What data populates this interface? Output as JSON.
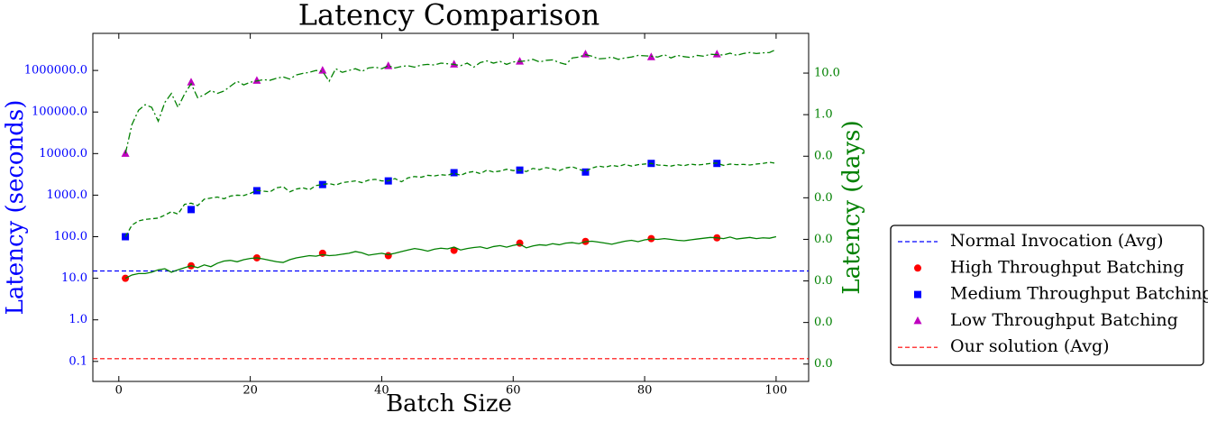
{
  "chart_data": {
    "type": "line",
    "title": "Latency Comparison",
    "xlabel": "Batch Size",
    "ylabel": "Latency (seconds)",
    "y2label": "Latency (days)",
    "xlim": [
      -3.95,
      104.95
    ],
    "xticks": [
      0,
      20,
      40,
      60,
      80,
      100
    ],
    "ylim": [
      0.033,
      7800000
    ],
    "yscale": "log",
    "yticks": [
      0.1,
      {
        "value": 1,
        "label": "1.0"
      },
      {
        "value": 10,
        "label": "10.0"
      },
      {
        "value": 100,
        "label": "100.0"
      },
      {
        "value": 1000,
        "label": "1000.0"
      },
      {
        "value": 10000,
        "label": "10000.0"
      },
      {
        "value": 100000,
        "label": "100000.0"
      },
      {
        "value": 1000000,
        "label": "1000000.0"
      }
    ],
    "y2lim": [
      3.82e-07,
      90.3
    ],
    "y2scale": "log",
    "y2ticks": [
      {
        "value": 1e-06,
        "label": "0.0"
      },
      {
        "value": 1e-05,
        "label": "0.0"
      },
      {
        "value": 0.0001,
        "label": "0.0"
      },
      {
        "value": 0.001,
        "label": "0.0"
      },
      {
        "value": 0.01,
        "label": "0.0"
      },
      {
        "value": 0.1,
        "label": "0.0"
      },
      {
        "value": 1,
        "label": "1.0"
      },
      {
        "value": 10,
        "label": "10.0"
      }
    ],
    "legend": "outside right",
    "series": [
      {
        "name": "Normal Invocation (Avg)",
        "kind": "hline",
        "style": "dashed",
        "color": "#0000ff",
        "value": 15
      },
      {
        "name": "High Throughput Batching",
        "kind": "marker",
        "marker": "circle",
        "color": "#ff0000",
        "x": [
          1,
          11,
          21,
          31,
          41,
          51,
          61,
          71,
          81,
          91
        ],
        "values": [
          10,
          20,
          31,
          40,
          35,
          47,
          70,
          77,
          90,
          94
        ]
      },
      {
        "name": "Medium Throughput Batching",
        "kind": "marker",
        "marker": "square",
        "color": "#0000ff",
        "x": [
          1,
          11,
          21,
          31,
          41,
          51,
          61,
          71,
          81,
          91
        ],
        "values": [
          100,
          450,
          1280,
          1800,
          2200,
          3470,
          4000,
          3600,
          5800,
          5800
        ]
      },
      {
        "name": "Low Throughput Batching",
        "kind": "marker",
        "marker": "triangle",
        "color": "#bf00bf",
        "x": [
          1,
          11,
          21,
          31,
          41,
          51,
          61,
          71,
          81,
          91
        ],
        "values": [
          10000,
          520000,
          570000,
          1000000,
          1280000,
          1400000,
          1650000,
          2450000,
          2100000,
          2450000
        ]
      },
      {
        "name": "Our solution (Avg)",
        "kind": "hline",
        "style": "dashed",
        "color": "#ff0000",
        "value": 0.116
      },
      {
        "kind": "line",
        "style": "solid",
        "color": "#008000",
        "x": [
          1,
          2,
          3,
          4,
          5,
          6,
          7,
          8,
          9,
          10,
          11,
          12,
          13,
          14,
          15,
          16,
          17,
          18,
          19,
          20,
          21,
          22,
          23,
          24,
          25,
          26,
          27,
          28,
          29,
          30,
          31,
          32,
          33,
          34,
          35,
          36,
          37,
          38,
          39,
          40,
          41,
          42,
          43,
          44,
          45,
          46,
          47,
          48,
          49,
          50,
          51,
          52,
          53,
          54,
          55,
          56,
          57,
          58,
          59,
          60,
          61,
          62,
          63,
          64,
          65,
          66,
          67,
          68,
          69,
          70,
          71,
          72,
          73,
          74,
          75,
          76,
          77,
          78,
          79,
          80,
          81,
          82,
          83,
          84,
          85,
          86,
          87,
          88,
          89,
          90,
          91,
          92,
          93,
          94,
          95,
          96,
          97,
          98,
          99,
          100
        ],
        "values": [
          10,
          12,
          13,
          13,
          14,
          16,
          17,
          14,
          16,
          18,
          20,
          18,
          21,
          19,
          23,
          26,
          27,
          25,
          28,
          30,
          31,
          29,
          27,
          25,
          24,
          28,
          31,
          33,
          35,
          34,
          37,
          35,
          36,
          38,
          40,
          44,
          41,
          36,
          38,
          40,
          37,
          40,
          44,
          48,
          52,
          49,
          45,
          50,
          53,
          51,
          56,
          48,
          52,
          55,
          57,
          52,
          58,
          61,
          56,
          62,
          66,
          54,
          60,
          64,
          62,
          68,
          64,
          70,
          72,
          68,
          76,
          78,
          74,
          70,
          66,
          72,
          78,
          82,
          76,
          84,
          88,
          86,
          90,
          86,
          82,
          80,
          84,
          88,
          92,
          96,
          94,
          90,
          98,
          88,
          92,
          96,
          90,
          94,
          92,
          100
        ]
      },
      {
        "kind": "line",
        "style": "dashed",
        "color": "#008000",
        "x": [
          1,
          2,
          3,
          4,
          5,
          6,
          7,
          8,
          9,
          10,
          11,
          12,
          13,
          14,
          15,
          16,
          17,
          18,
          19,
          20,
          21,
          22,
          23,
          24,
          25,
          26,
          27,
          28,
          29,
          30,
          31,
          32,
          33,
          34,
          35,
          36,
          37,
          38,
          39,
          40,
          41,
          42,
          43,
          44,
          45,
          46,
          47,
          48,
          49,
          50,
          51,
          52,
          53,
          54,
          55,
          56,
          57,
          58,
          59,
          60,
          61,
          62,
          63,
          64,
          65,
          66,
          67,
          68,
          69,
          70,
          71,
          72,
          73,
          74,
          75,
          76,
          77,
          78,
          79,
          80,
          81,
          82,
          83,
          84,
          85,
          86,
          87,
          88,
          89,
          90,
          91,
          92,
          93,
          94,
          95,
          96,
          97,
          98,
          99,
          100
        ],
        "values": [
          100,
          190,
          240,
          260,
          270,
          280,
          330,
          400,
          350,
          600,
          640,
          560,
          800,
          850,
          900,
          820,
          950,
          1000,
          980,
          1100,
          1300,
          1250,
          1200,
          1500,
          1600,
          1200,
          1400,
          1500,
          1350,
          1700,
          1800,
          1900,
          1750,
          2000,
          2100,
          2200,
          2000,
          2300,
          2400,
          2200,
          2200,
          2500,
          2100,
          2600,
          2800,
          2700,
          3000,
          2900,
          3100,
          3000,
          3400,
          3000,
          3500,
          3700,
          3300,
          4000,
          3600,
          3800,
          4200,
          3900,
          4000,
          3700,
          4400,
          4100,
          4600,
          4300,
          3900,
          4500,
          4800,
          4200,
          3700,
          4500,
          5000,
          4700,
          5200,
          4900,
          5500,
          5000,
          5400,
          5600,
          5800,
          5300,
          5200,
          5000,
          5400,
          5100,
          5600,
          5300,
          5500,
          5800,
          5900,
          5200,
          5600,
          5400,
          5500,
          5300,
          5600,
          5800,
          6200,
          5800
        ]
      },
      {
        "kind": "line",
        "style": "dashdot",
        "color": "#008000",
        "x": [
          1,
          2,
          3,
          4,
          5,
          6,
          7,
          8,
          9,
          10,
          11,
          12,
          13,
          14,
          15,
          16,
          17,
          18,
          19,
          20,
          21,
          22,
          23,
          24,
          25,
          26,
          27,
          28,
          29,
          30,
          31,
          32,
          33,
          34,
          35,
          36,
          37,
          38,
          39,
          40,
          41,
          42,
          43,
          44,
          45,
          46,
          47,
          48,
          49,
          50,
          51,
          52,
          53,
          54,
          55,
          56,
          57,
          58,
          59,
          60,
          61,
          62,
          63,
          64,
          65,
          66,
          67,
          68,
          69,
          70,
          71,
          72,
          73,
          74,
          75,
          76,
          77,
          78,
          79,
          80,
          81,
          82,
          83,
          84,
          85,
          86,
          87,
          88,
          89,
          90,
          91,
          92,
          93,
          94,
          95,
          96,
          97,
          98,
          99,
          100
        ],
        "values": [
          10000,
          50000,
          110000,
          150000,
          130000,
          60000,
          170000,
          280000,
          130000,
          270000,
          480000,
          220000,
          260000,
          330000,
          280000,
          320000,
          420000,
          550000,
          450000,
          520000,
          560000,
          600000,
          580000,
          650000,
          700000,
          620000,
          780000,
          850000,
          900000,
          1000000,
          950000,
          550000,
          1100000,
          900000,
          1000000,
          1100000,
          950000,
          1150000,
          1200000,
          1100000,
          1300000,
          1150000,
          1250000,
          1300000,
          1200000,
          1350000,
          1400000,
          1350000,
          1500000,
          1450000,
          1400000,
          1300000,
          1500000,
          1200000,
          1550000,
          1700000,
          1500000,
          1650000,
          1400000,
          1600000,
          1650000,
          1700000,
          1850000,
          1600000,
          1750000,
          1800000,
          1550000,
          1400000,
          2000000,
          2100000,
          2400000,
          2200000,
          1900000,
          1950000,
          2100000,
          1850000,
          2000000,
          2100000,
          2300000,
          2250000,
          2200000,
          2100000,
          2400000,
          2000000,
          2300000,
          2150000,
          2050000,
          2300000,
          2200000,
          2450000,
          2400000,
          2350000,
          2600000,
          2300000,
          2550000,
          2700000,
          2550000,
          2650000,
          2700000,
          3200000
        ]
      }
    ]
  }
}
